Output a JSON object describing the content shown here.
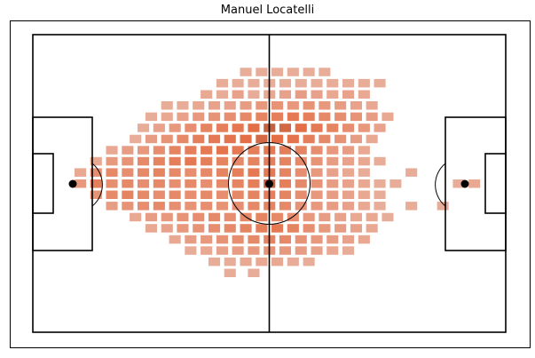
{
  "chart_data": {
    "type": "heatmap",
    "title": "Manuel Locatelli",
    "xlabel": "",
    "ylabel": "",
    "pitch": {
      "length": 120,
      "width": 80
    },
    "bins": {
      "x": 42,
      "y": 37
    },
    "grid": false,
    "colors": {
      "pitch_lines": "#000000",
      "frame": "#000000",
      "low": "#e9b7a6",
      "mid": "#e46f46",
      "high": "#7a4a3c"
    },
    "value_scale": "relative density 0-1",
    "cells": [
      [
        54,
        10,
        0.1
      ],
      [
        58,
        10,
        0.1
      ],
      [
        62,
        10,
        0.1
      ],
      [
        66,
        10,
        0.1
      ],
      [
        70,
        10,
        0.1
      ],
      [
        74,
        10,
        0.1
      ],
      [
        48,
        13,
        0.1
      ],
      [
        52,
        13,
        0.1
      ],
      [
        56,
        13,
        0.1
      ],
      [
        60,
        13,
        0.1
      ],
      [
        64,
        13,
        0.1
      ],
      [
        68,
        13,
        0.1
      ],
      [
        72,
        13,
        0.1
      ],
      [
        76,
        13,
        0.1
      ],
      [
        80,
        13,
        0.1
      ],
      [
        84,
        13,
        0.1
      ],
      [
        88,
        13,
        0.1
      ],
      [
        44,
        16,
        0.15
      ],
      [
        48,
        16,
        0.1
      ],
      [
        52,
        16,
        0.2
      ],
      [
        56,
        16,
        0.1
      ],
      [
        60,
        16,
        0.15
      ],
      [
        64,
        16,
        0.2
      ],
      [
        68,
        16,
        0.25
      ],
      [
        72,
        16,
        0.2
      ],
      [
        76,
        16,
        0.15
      ],
      [
        80,
        16,
        0.2
      ],
      [
        84,
        16,
        0.15
      ],
      [
        34,
        19,
        0.1
      ],
      [
        38,
        19,
        0.1
      ],
      [
        42,
        19,
        0.15
      ],
      [
        46,
        19,
        0.2
      ],
      [
        50,
        19,
        0.2
      ],
      [
        54,
        19,
        0.25
      ],
      [
        58,
        19,
        0.3
      ],
      [
        62,
        19,
        0.35
      ],
      [
        66,
        19,
        0.3
      ],
      [
        70,
        19,
        0.35
      ],
      [
        74,
        19,
        0.3
      ],
      [
        78,
        19,
        0.25
      ],
      [
        82,
        19,
        0.2
      ],
      [
        86,
        19,
        0.15
      ],
      [
        30,
        22,
        0.1
      ],
      [
        34,
        22,
        0.15
      ],
      [
        38,
        22,
        0.2
      ],
      [
        42,
        22,
        0.3
      ],
      [
        46,
        22,
        0.35
      ],
      [
        50,
        22,
        0.4
      ],
      [
        54,
        22,
        0.45
      ],
      [
        58,
        22,
        0.5
      ],
      [
        62,
        22,
        0.55
      ],
      [
        66,
        22,
        0.6
      ],
      [
        70,
        22,
        0.55
      ],
      [
        74,
        22,
        0.45
      ],
      [
        78,
        22,
        0.4
      ],
      [
        82,
        22,
        0.35
      ],
      [
        86,
        22,
        0.25
      ],
      [
        90,
        22,
        0.15
      ],
      [
        28,
        25,
        0.1
      ],
      [
        32,
        25,
        0.2
      ],
      [
        36,
        25,
        0.3
      ],
      [
        40,
        25,
        0.4
      ],
      [
        44,
        25,
        0.5
      ],
      [
        48,
        25,
        0.55
      ],
      [
        52,
        25,
        0.62
      ],
      [
        56,
        25,
        0.7
      ],
      [
        60,
        25,
        0.8
      ],
      [
        64,
        25,
        0.75
      ],
      [
        68,
        25,
        0.7
      ],
      [
        72,
        25,
        0.6
      ],
      [
        76,
        25,
        0.5
      ],
      [
        80,
        25,
        0.4
      ],
      [
        84,
        25,
        0.3
      ],
      [
        88,
        25,
        0.2
      ],
      [
        26,
        28,
        0.1
      ],
      [
        30,
        28,
        0.25
      ],
      [
        34,
        28,
        0.35
      ],
      [
        38,
        28,
        0.45
      ],
      [
        42,
        28,
        0.55
      ],
      [
        46,
        28,
        0.6
      ],
      [
        50,
        28,
        0.65
      ],
      [
        54,
        28,
        0.7
      ],
      [
        58,
        28,
        0.75
      ],
      [
        62,
        28,
        0.7
      ],
      [
        66,
        28,
        0.65
      ],
      [
        70,
        28,
        0.55
      ],
      [
        74,
        28,
        0.45
      ],
      [
        78,
        28,
        0.35
      ],
      [
        82,
        28,
        0.25
      ],
      [
        86,
        28,
        0.15
      ],
      [
        20,
        31,
        0.15
      ],
      [
        24,
        31,
        0.25
      ],
      [
        28,
        31,
        0.3
      ],
      [
        32,
        31,
        0.4
      ],
      [
        36,
        31,
        0.5
      ],
      [
        40,
        31,
        0.55
      ],
      [
        44,
        31,
        0.6
      ],
      [
        48,
        31,
        0.65
      ],
      [
        52,
        31,
        0.6
      ],
      [
        56,
        31,
        0.55
      ],
      [
        60,
        31,
        0.6
      ],
      [
        64,
        31,
        0.55
      ],
      [
        68,
        31,
        0.5
      ],
      [
        72,
        31,
        0.4
      ],
      [
        76,
        31,
        0.3
      ],
      [
        80,
        31,
        0.25
      ],
      [
        84,
        31,
        0.15
      ],
      [
        16,
        34,
        0.15
      ],
      [
        20,
        34,
        0.3
      ],
      [
        24,
        34,
        0.35
      ],
      [
        28,
        34,
        0.45
      ],
      [
        32,
        34,
        0.5
      ],
      [
        36,
        34,
        0.55
      ],
      [
        40,
        34,
        0.6
      ],
      [
        44,
        34,
        0.55
      ],
      [
        48,
        34,
        0.5
      ],
      [
        52,
        34,
        0.45
      ],
      [
        56,
        34,
        0.5
      ],
      [
        60,
        34,
        0.55
      ],
      [
        64,
        34,
        0.5
      ],
      [
        68,
        34,
        0.45
      ],
      [
        72,
        34,
        0.35
      ],
      [
        76,
        34,
        0.25
      ],
      [
        80,
        34,
        0.2
      ],
      [
        84,
        34,
        0.15
      ],
      [
        88,
        34,
        0.1
      ],
      [
        12,
        37,
        0.15
      ],
      [
        16,
        37,
        0.4
      ],
      [
        20,
        37,
        0.45
      ],
      [
        24,
        37,
        0.4
      ],
      [
        28,
        37,
        0.45
      ],
      [
        32,
        37,
        0.5
      ],
      [
        36,
        37,
        0.45
      ],
      [
        40,
        37,
        0.4
      ],
      [
        44,
        37,
        0.45
      ],
      [
        48,
        37,
        0.5
      ],
      [
        52,
        37,
        0.55
      ],
      [
        56,
        37,
        0.6
      ],
      [
        60,
        37,
        0.6
      ],
      [
        64,
        37,
        0.5
      ],
      [
        68,
        37,
        0.4
      ],
      [
        72,
        37,
        0.3
      ],
      [
        76,
        37,
        0.2
      ],
      [
        80,
        37,
        0.15
      ],
      [
        84,
        37,
        0.1
      ],
      [
        96,
        37,
        0.1
      ],
      [
        12,
        40,
        0.3
      ],
      [
        16,
        40,
        0.55
      ],
      [
        20,
        40,
        0.4
      ],
      [
        24,
        40,
        0.45
      ],
      [
        28,
        40,
        0.4
      ],
      [
        32,
        40,
        0.45
      ],
      [
        36,
        40,
        0.4
      ],
      [
        40,
        40,
        0.45
      ],
      [
        44,
        40,
        0.4
      ],
      [
        48,
        40,
        0.45
      ],
      [
        52,
        40,
        0.5
      ],
      [
        56,
        40,
        0.55
      ],
      [
        60,
        40,
        0.8
      ],
      [
        64,
        40,
        0.55
      ],
      [
        68,
        40,
        0.45
      ],
      [
        72,
        40,
        0.35
      ],
      [
        76,
        40,
        0.25
      ],
      [
        80,
        40,
        0.2
      ],
      [
        84,
        40,
        0.15
      ],
      [
        88,
        40,
        0.1
      ],
      [
        92,
        40,
        0.1
      ],
      [
        108,
        40,
        0.1
      ],
      [
        112,
        40,
        0.15
      ],
      [
        16,
        43,
        0.35
      ],
      [
        20,
        43,
        0.45
      ],
      [
        24,
        43,
        0.5
      ],
      [
        28,
        43,
        0.45
      ],
      [
        32,
        43,
        0.4
      ],
      [
        36,
        43,
        0.45
      ],
      [
        40,
        43,
        0.4
      ],
      [
        44,
        43,
        0.45
      ],
      [
        48,
        43,
        0.4
      ],
      [
        52,
        43,
        0.45
      ],
      [
        56,
        43,
        0.5
      ],
      [
        60,
        43,
        0.55
      ],
      [
        64,
        43,
        0.5
      ],
      [
        68,
        43,
        0.4
      ],
      [
        72,
        43,
        0.3
      ],
      [
        76,
        43,
        0.25
      ],
      [
        80,
        43,
        0.2
      ],
      [
        84,
        43,
        0.15
      ],
      [
        88,
        43,
        0.1
      ],
      [
        20,
        46,
        0.25
      ],
      [
        24,
        46,
        0.35
      ],
      [
        28,
        46,
        0.4
      ],
      [
        32,
        46,
        0.45
      ],
      [
        36,
        46,
        0.4
      ],
      [
        40,
        46,
        0.35
      ],
      [
        44,
        46,
        0.4
      ],
      [
        48,
        46,
        0.35
      ],
      [
        52,
        46,
        0.4
      ],
      [
        56,
        46,
        0.45
      ],
      [
        60,
        46,
        0.5
      ],
      [
        64,
        46,
        0.45
      ],
      [
        68,
        46,
        0.35
      ],
      [
        72,
        46,
        0.3
      ],
      [
        76,
        46,
        0.25
      ],
      [
        80,
        46,
        0.2
      ],
      [
        84,
        46,
        0.15
      ],
      [
        88,
        46,
        0.1
      ],
      [
        96,
        46,
        0.1
      ],
      [
        104,
        46,
        0.1
      ],
      [
        26,
        49,
        0.15
      ],
      [
        30,
        49,
        0.25
      ],
      [
        34,
        49,
        0.3
      ],
      [
        38,
        49,
        0.35
      ],
      [
        42,
        49,
        0.4
      ],
      [
        46,
        49,
        0.45
      ],
      [
        50,
        49,
        0.4
      ],
      [
        54,
        49,
        0.45
      ],
      [
        58,
        49,
        0.5
      ],
      [
        62,
        49,
        0.45
      ],
      [
        66,
        49,
        0.4
      ],
      [
        70,
        49,
        0.3
      ],
      [
        74,
        49,
        0.25
      ],
      [
        78,
        49,
        0.2
      ],
      [
        82,
        49,
        0.15
      ],
      [
        86,
        49,
        0.15
      ],
      [
        90,
        49,
        0.1
      ],
      [
        30,
        52,
        0.15
      ],
      [
        34,
        52,
        0.2
      ],
      [
        38,
        52,
        0.3
      ],
      [
        42,
        52,
        0.35
      ],
      [
        46,
        52,
        0.4
      ],
      [
        50,
        52,
        0.45
      ],
      [
        54,
        52,
        0.5
      ],
      [
        58,
        52,
        0.55
      ],
      [
        62,
        52,
        0.6
      ],
      [
        66,
        52,
        0.5
      ],
      [
        70,
        52,
        0.4
      ],
      [
        74,
        52,
        0.3
      ],
      [
        78,
        52,
        0.25
      ],
      [
        82,
        52,
        0.2
      ],
      [
        86,
        52,
        0.15
      ],
      [
        36,
        55,
        0.15
      ],
      [
        40,
        55,
        0.25
      ],
      [
        44,
        55,
        0.3
      ],
      [
        48,
        55,
        0.35
      ],
      [
        52,
        55,
        0.4
      ],
      [
        56,
        55,
        0.45
      ],
      [
        60,
        55,
        0.5
      ],
      [
        64,
        55,
        0.45
      ],
      [
        68,
        55,
        0.35
      ],
      [
        72,
        55,
        0.3
      ],
      [
        76,
        55,
        0.25
      ],
      [
        80,
        55,
        0.2
      ],
      [
        84,
        55,
        0.15
      ],
      [
        40,
        58,
        0.1
      ],
      [
        44,
        58,
        0.15
      ],
      [
        48,
        58,
        0.2
      ],
      [
        52,
        58,
        0.25
      ],
      [
        56,
        58,
        0.3
      ],
      [
        60,
        58,
        0.35
      ],
      [
        64,
        58,
        0.3
      ],
      [
        68,
        58,
        0.25
      ],
      [
        72,
        58,
        0.2
      ],
      [
        76,
        58,
        0.15
      ],
      [
        80,
        58,
        0.1
      ],
      [
        46,
        61,
        0.1
      ],
      [
        50,
        61,
        0.1
      ],
      [
        54,
        61,
        0.15
      ],
      [
        58,
        61,
        0.15
      ],
      [
        62,
        61,
        0.15
      ],
      [
        66,
        61,
        0.1
      ],
      [
        70,
        61,
        0.1
      ],
      [
        50,
        64,
        0.1
      ],
      [
        56,
        64,
        0.1
      ]
    ]
  }
}
